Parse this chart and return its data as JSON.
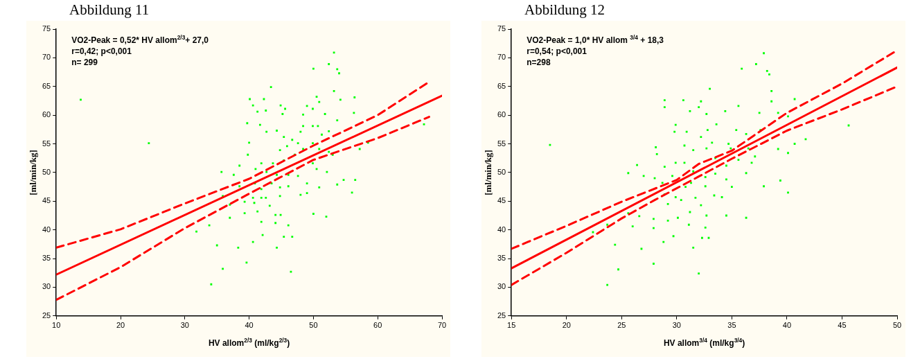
{
  "chart_data": [
    {
      "type": "scatter",
      "title": "Abbildung 11",
      "xlabel": "HV allom$^{2/3}$ (ml/kg$^{2/3}$)",
      "ylabel": "[ml/min/kg]",
      "annotations": [
        "VO2-Peak = 0,52* HV allom$^{2/3}$+ 27,0",
        "r=0,42; p<0,001",
        "n= 299"
      ],
      "xlim": [
        10,
        70
      ],
      "xticks": [
        10,
        20,
        30,
        40,
        50,
        60,
        70
      ],
      "ylim": [
        25,
        75
      ],
      "yticks": [
        25,
        30,
        35,
        40,
        45,
        50,
        55,
        60,
        65,
        70,
        75
      ],
      "grid": false,
      "marker": "square",
      "series": [
        {
          "type": "scatter",
          "color": "#00ff00",
          "x": [
            13.8,
            24.4,
            34.1,
            35.9,
            35.0,
            33.8,
            31.8,
            35.7,
            37.0,
            38.3,
            39.6,
            40.6,
            42.1,
            44.3,
            46.5,
            45.4,
            46.7,
            44.1,
            46.1,
            44.1,
            44.9,
            43.2,
            41.9,
            40.8,
            39.3,
            38.5,
            37.6,
            38.5,
            39.8,
            40.0,
            39.7,
            40.1,
            40.6,
            42.3,
            43.4,
            41.7,
            41.3,
            42.6,
            44.9,
            45.6,
            45.2,
            44.3,
            42.7,
            45.4,
            46.7,
            48.4,
            49.0,
            49.9,
            50.9,
            50.5,
            50.0,
            52.4,
            53.2,
            53.7,
            54.0,
            53.2,
            54.2,
            56.4,
            56.3,
            53.7,
            51.8,
            50.7,
            49.9,
            48.4,
            48.0,
            51.3,
            52.4,
            49.9,
            47.6,
            45.9,
            44.8,
            48.4,
            50.9,
            52.4,
            47.1,
            45.4,
            43.7,
            41.9,
            41.0,
            42.7,
            44.3,
            46.1,
            47.6,
            49.9,
            50.5,
            52.1,
            49.0,
            48.0,
            46.1,
            44.8,
            43.5,
            41.9,
            40.9,
            40.6,
            41.3,
            42.6,
            44.8,
            49.0,
            50.9,
            53.7,
            54.7,
            56.5,
            56.0,
            50.0,
            52.0,
            57.2,
            53.0,
            58.5,
            67.2,
            35.9,
            37.0,
            41.9,
            39.3
          ],
          "values": [
            62.7,
            55.1,
            30.5,
            33.2,
            37.3,
            40.8,
            39.7,
            50.1,
            42.1,
            36.9,
            34.3,
            37.9,
            39.1,
            36.9,
            32.7,
            38.8,
            38.8,
            41.2,
            40.8,
            42.6,
            42.6,
            44.2,
            45.6,
            44.7,
            44.9,
            47.6,
            49.6,
            51.2,
            53.1,
            55.2,
            58.6,
            62.8,
            61.7,
            62.8,
            64.9,
            58.3,
            60.6,
            60.8,
            61.7,
            61.1,
            60.2,
            57.3,
            57.1,
            56.2,
            55.7,
            60.1,
            61.6,
            61.1,
            62.3,
            63.2,
            68.1,
            68.9,
            70.9,
            68.0,
            67.3,
            64.2,
            62.7,
            63.1,
            60.4,
            59.1,
            60.2,
            58.1,
            58.1,
            58.1,
            57.1,
            56.6,
            57.2,
            55.1,
            55.1,
            54.6,
            53.9,
            54.1,
            54.1,
            53.6,
            53.1,
            52.1,
            51.6,
            51.6,
            50.6,
            50.1,
            49.6,
            49.6,
            49.4,
            51.6,
            50.6,
            50.1,
            48.1,
            46.1,
            47.6,
            47.4,
            48.1,
            47.1,
            48.1,
            45.6,
            43.2,
            45.6,
            45.9,
            46.4,
            47.4,
            47.9,
            48.7,
            48.7,
            46.5,
            42.8,
            42.3,
            54.1,
            53.1,
            55.2,
            58.4,
            45.9,
            44.4,
            41.4,
            42.9
          ]
        },
        {
          "type": "line",
          "color": "#ff0000",
          "line_style": "solid",
          "marker": "none",
          "x": [
            10,
            70
          ],
          "values": [
            32.2,
            63.4
          ]
        },
        {
          "type": "line",
          "color": "#ff0000",
          "line_style": "dashed",
          "marker": "none",
          "x": [
            10,
            20,
            30,
            40,
            50,
            60,
            68
          ],
          "values": [
            36.9,
            40.1,
            44.6,
            48.9,
            54.7,
            60.0,
            65.8
          ]
        },
        {
          "type": "line",
          "color": "#ff0000",
          "line_style": "dashed",
          "marker": "none",
          "x": [
            10,
            20,
            30,
            40,
            50,
            60,
            68
          ],
          "values": [
            27.8,
            33.5,
            40.3,
            46.3,
            52.2,
            56.0,
            59.7
          ]
        }
      ]
    },
    {
      "type": "scatter",
      "title": "Abbildung 12",
      "xlabel": "HV allom$^{3/4}$ (ml/kg$^{3/4}$)",
      "ylabel": "[ml/min/kg]",
      "annotations": [
        "VO2-Peak = 1,0* HV allom $^{3/4}$ + 18,3",
        "r=0,54; p<0,001",
        "n=298"
      ],
      "xlim": [
        15,
        50
      ],
      "xticks": [
        15,
        20,
        25,
        30,
        35,
        40,
        45,
        50
      ],
      "ylim": [
        25,
        75
      ],
      "yticks": [
        25,
        30,
        35,
        40,
        45,
        50,
        55,
        60,
        65,
        70,
        75
      ],
      "grid": false,
      "marker": "square",
      "series": [
        {
          "type": "scatter",
          "color": "#00ff00",
          "x": [
            18.5,
            23.7,
            24.7,
            24.4,
            22.4,
            23.7,
            25.6,
            26.0,
            26.8,
            27.9,
            28.8,
            29.7,
            31.5,
            32.0,
            32.3,
            32.9,
            32.6,
            32.7,
            32.2,
            31.2,
            31.1,
            30.1,
            29.2,
            27.9,
            26.6,
            27.9,
            34.5,
            36.3,
            25.6,
            26.4,
            27.0,
            28.0,
            28.2,
            28.1,
            28.9,
            28.7,
            28.9,
            29.2,
            29.9,
            30.4,
            30.8,
            29.9,
            30.7,
            29.8,
            29.9,
            28.9,
            28.9,
            30.6,
            31.2,
            32.2,
            32.0,
            32.7,
            33.0,
            33.6,
            34.4,
            35.6,
            35.9,
            37.2,
            37.9,
            38.2,
            38.4,
            38.6,
            38.6,
            37.5,
            39.2,
            40.7,
            41.7,
            40.1,
            45.6,
            40.7,
            39.2,
            40.1,
            39.4,
            40.1,
            37.9,
            36.3,
            37.1,
            37.6,
            36.3,
            35.4,
            34.9,
            35.6,
            34.5,
            33.5,
            33.2,
            32.7,
            32.2,
            31.5,
            31.5,
            32.6,
            33.5,
            34.5,
            35.0,
            34.1,
            33.4,
            31.7,
            31.3,
            32.8,
            30.9,
            34.7,
            36.5,
            36.8,
            30.7,
            29.6,
            32.6
          ],
          "values": [
            54.8,
            30.4,
            33.1,
            37.4,
            39.6,
            40.9,
            42.9,
            40.6,
            36.7,
            34.1,
            37.9,
            38.9,
            36.9,
            32.4,
            38.6,
            38.6,
            40.4,
            42.5,
            44.3,
            43.1,
            40.9,
            42.1,
            41.6,
            41.9,
            42.4,
            40.3,
            42.5,
            42.1,
            49.9,
            51.3,
            49.4,
            49.0,
            53.2,
            54.4,
            51.0,
            48.2,
            46.2,
            44.5,
            45.7,
            45.2,
            47.5,
            51.7,
            51.7,
            57.1,
            58.3,
            62.6,
            61.4,
            62.6,
            60.7,
            62.4,
            61.4,
            60.2,
            64.6,
            58.4,
            60.7,
            61.6,
            68.1,
            68.9,
            70.8,
            67.7,
            67.1,
            64.2,
            62.4,
            60.4,
            60.4,
            62.8,
            55.8,
            59.8,
            58.2,
            55.0,
            54.1,
            53.4,
            48.6,
            46.5,
            47.6,
            49.9,
            52.8,
            57.4,
            56.7,
            57.4,
            54.2,
            52.2,
            51.2,
            52.5,
            55.2,
            54.2,
            56.2,
            53.9,
            50.2,
            49.2,
            49.8,
            48.8,
            47.5,
            45.7,
            46.0,
            45.6,
            48.2,
            57.4,
            57.1,
            55.0,
            54.2,
            51.7,
            54.7,
            49.4,
            47.6
          ]
        },
        {
          "type": "line",
          "color": "#ff0000",
          "line_style": "solid",
          "marker": "none",
          "x": [
            15,
            50
          ],
          "values": [
            33.3,
            68.3
          ]
        },
        {
          "type": "line",
          "color": "#ff0000",
          "line_style": "dashed",
          "marker": "none",
          "x": [
            15,
            20,
            25,
            30,
            32,
            35,
            40,
            45,
            50
          ],
          "values": [
            36.7,
            40.7,
            44.9,
            48.7,
            51.5,
            53.8,
            60.4,
            65.5,
            71.3
          ]
        },
        {
          "type": "line",
          "color": "#ff0000",
          "line_style": "dashed",
          "marker": "none",
          "x": [
            15,
            20,
            25,
            28,
            32,
            35,
            40,
            45,
            50
          ],
          "values": [
            30.4,
            36.0,
            42.0,
            45.2,
            49.3,
            52.4,
            57.3,
            61.0,
            65.0
          ]
        }
      ]
    }
  ]
}
